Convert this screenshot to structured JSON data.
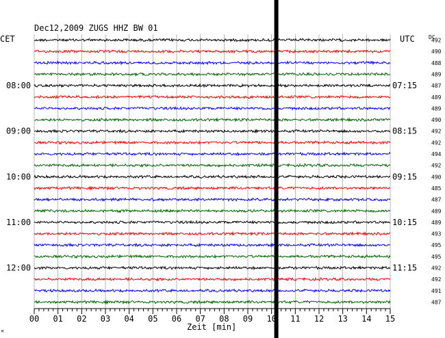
{
  "header": {
    "title": "Dec12,2009   ZUGS HHZ BW 01",
    "left_timezone": "CET",
    "right_timezone": "UTC",
    "dc_label": "DC"
  },
  "footer": {
    "xlabel": "Zeit [min]",
    "corner_mark": "M"
  },
  "colors": {
    "trace_cycle": [
      "#000000",
      "#ff0000",
      "#0000ff",
      "#006600"
    ],
    "grid": "#888888",
    "marker": "#000000"
  },
  "chart_data": {
    "type": "line",
    "title": "Dec12,2009   ZUGS HHZ BW 01",
    "xlabel": "Zeit [min]",
    "xlim": [
      0,
      15
    ],
    "x_ticks": [
      "00",
      "01",
      "02",
      "03",
      "04",
      "05",
      "06",
      "07",
      "08",
      "09",
      "10",
      "11",
      "12",
      "13",
      "14",
      "15"
    ],
    "x_minor_ticks_per_minute": 5,
    "grid": true,
    "trace_interval_minutes": 15,
    "trace_count": 24,
    "left_time_labels": [
      {
        "trace": 4,
        "text": "08:00"
      },
      {
        "trace": 8,
        "text": "09:00"
      },
      {
        "trace": 12,
        "text": "10:00"
      },
      {
        "trace": 16,
        "text": "11:00"
      },
      {
        "trace": 20,
        "text": "12:00"
      }
    ],
    "right_time_labels": [
      {
        "trace": 4,
        "text": "07:15"
      },
      {
        "trace": 8,
        "text": "08:15"
      },
      {
        "trace": 12,
        "text": "09:15"
      },
      {
        "trace": 16,
        "text": "10:15"
      },
      {
        "trace": 20,
        "text": "11:15"
      }
    ],
    "dc_offsets": [
      492,
      490,
      488,
      489,
      487,
      489,
      489,
      490,
      492,
      492,
      494,
      492,
      490,
      485,
      487,
      489,
      489,
      493,
      495,
      495,
      492,
      492,
      491,
      487
    ],
    "current_time_marker_minute": 10.2
  }
}
